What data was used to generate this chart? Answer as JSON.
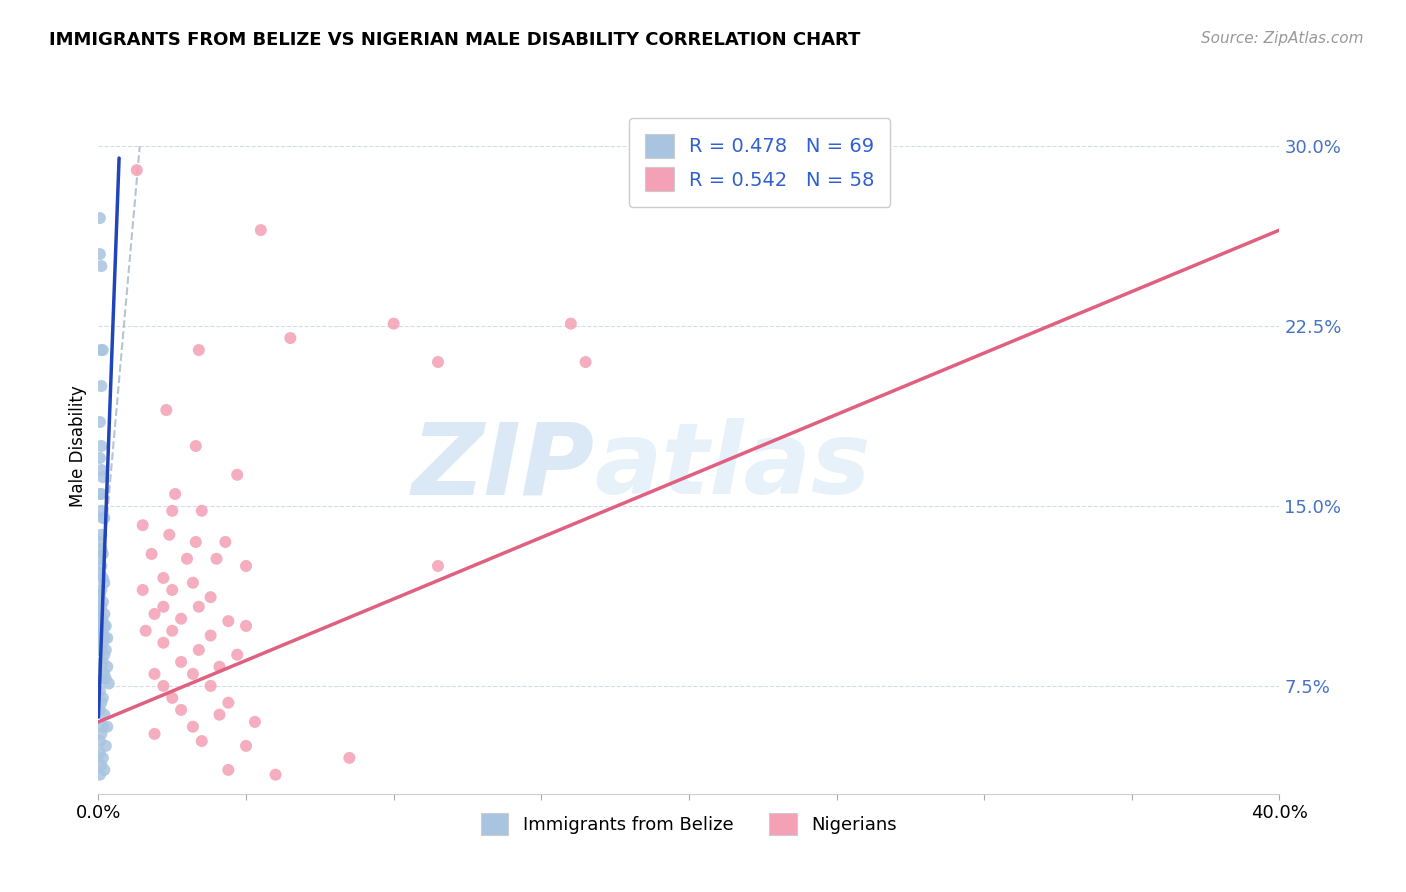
{
  "title": "IMMIGRANTS FROM BELIZE VS NIGERIAN MALE DISABILITY CORRELATION CHART",
  "source": "Source: ZipAtlas.com",
  "ylabel": "Male Disability",
  "ytick_labels": [
    "7.5%",
    "15.0%",
    "22.5%",
    "30.0%"
  ],
  "ytick_values": [
    0.075,
    0.15,
    0.225,
    0.3
  ],
  "xlim": [
    0.0,
    0.4
  ],
  "ylim": [
    0.03,
    0.32
  ],
  "legend_blue_label": "R = 0.478   N = 69",
  "legend_pink_label": "R = 0.542   N = 58",
  "legend_belize_label": "Immigrants from Belize",
  "legend_nigerian_label": "Nigerians",
  "watermark_zip": "ZIP",
  "watermark_atlas": "atlas",
  "blue_color": "#a8c4e0",
  "pink_color": "#f4a0b5",
  "blue_line_color": "#2244bb",
  "pink_line_color": "#e06080",
  "dashed_line_color": "#b8c4d0",
  "blue_scatter": [
    [
      0.0005,
      0.255
    ],
    [
      0.0005,
      0.27
    ],
    [
      0.001,
      0.25
    ],
    [
      0.0008,
      0.215
    ],
    [
      0.0015,
      0.215
    ],
    [
      0.001,
      0.2
    ],
    [
      0.0005,
      0.185
    ],
    [
      0.001,
      0.175
    ],
    [
      0.0005,
      0.17
    ],
    [
      0.001,
      0.165
    ],
    [
      0.0015,
      0.162
    ],
    [
      0.0005,
      0.155
    ],
    [
      0.001,
      0.155
    ],
    [
      0.001,
      0.148
    ],
    [
      0.0015,
      0.145
    ],
    [
      0.002,
      0.145
    ],
    [
      0.001,
      0.138
    ],
    [
      0.0005,
      0.135
    ],
    [
      0.001,
      0.132
    ],
    [
      0.0015,
      0.13
    ],
    [
      0.0005,
      0.128
    ],
    [
      0.001,
      0.125
    ],
    [
      0.0005,
      0.122
    ],
    [
      0.0015,
      0.12
    ],
    [
      0.002,
      0.118
    ],
    [
      0.001,
      0.115
    ],
    [
      0.0005,
      0.113
    ],
    [
      0.0015,
      0.11
    ],
    [
      0.001,
      0.108
    ],
    [
      0.0005,
      0.105
    ],
    [
      0.002,
      0.105
    ],
    [
      0.001,
      0.103
    ],
    [
      0.0015,
      0.102
    ],
    [
      0.0005,
      0.1
    ],
    [
      0.001,
      0.1
    ],
    [
      0.002,
      0.1
    ],
    [
      0.0025,
      0.1
    ],
    [
      0.0015,
      0.098
    ],
    [
      0.0005,
      0.096
    ],
    [
      0.001,
      0.095
    ],
    [
      0.002,
      0.095
    ],
    [
      0.003,
      0.095
    ],
    [
      0.0015,
      0.093
    ],
    [
      0.0005,
      0.09
    ],
    [
      0.001,
      0.09
    ],
    [
      0.0025,
      0.09
    ],
    [
      0.002,
      0.088
    ],
    [
      0.0015,
      0.085
    ],
    [
      0.001,
      0.083
    ],
    [
      0.003,
      0.083
    ],
    [
      0.002,
      0.08
    ],
    [
      0.0015,
      0.078
    ],
    [
      0.0025,
      0.078
    ],
    [
      0.0035,
      0.076
    ],
    [
      0.0005,
      0.073
    ],
    [
      0.0015,
      0.07
    ],
    [
      0.001,
      0.068
    ],
    [
      0.0005,
      0.065
    ],
    [
      0.002,
      0.063
    ],
    [
      0.0015,
      0.058
    ],
    [
      0.003,
      0.058
    ],
    [
      0.001,
      0.055
    ],
    [
      0.0005,
      0.052
    ],
    [
      0.0025,
      0.05
    ],
    [
      0.0005,
      0.047
    ],
    [
      0.0015,
      0.045
    ],
    [
      0.001,
      0.042
    ],
    [
      0.002,
      0.04
    ],
    [
      0.0005,
      0.038
    ]
  ],
  "pink_scatter": [
    [
      0.013,
      0.29
    ],
    [
      0.055,
      0.265
    ],
    [
      0.034,
      0.215
    ],
    [
      0.065,
      0.22
    ],
    [
      0.1,
      0.226
    ],
    [
      0.16,
      0.226
    ],
    [
      0.115,
      0.21
    ],
    [
      0.023,
      0.19
    ],
    [
      0.033,
      0.175
    ],
    [
      0.047,
      0.163
    ],
    [
      0.026,
      0.155
    ],
    [
      0.025,
      0.148
    ],
    [
      0.035,
      0.148
    ],
    [
      0.015,
      0.142
    ],
    [
      0.024,
      0.138
    ],
    [
      0.033,
      0.135
    ],
    [
      0.043,
      0.135
    ],
    [
      0.018,
      0.13
    ],
    [
      0.03,
      0.128
    ],
    [
      0.04,
      0.128
    ],
    [
      0.05,
      0.125
    ],
    [
      0.022,
      0.12
    ],
    [
      0.032,
      0.118
    ],
    [
      0.015,
      0.115
    ],
    [
      0.025,
      0.115
    ],
    [
      0.038,
      0.112
    ],
    [
      0.022,
      0.108
    ],
    [
      0.034,
      0.108
    ],
    [
      0.019,
      0.105
    ],
    [
      0.028,
      0.103
    ],
    [
      0.044,
      0.102
    ],
    [
      0.05,
      0.1
    ],
    [
      0.016,
      0.098
    ],
    [
      0.025,
      0.098
    ],
    [
      0.038,
      0.096
    ],
    [
      0.115,
      0.125
    ],
    [
      0.165,
      0.21
    ],
    [
      0.022,
      0.093
    ],
    [
      0.034,
      0.09
    ],
    [
      0.047,
      0.088
    ],
    [
      0.028,
      0.085
    ],
    [
      0.041,
      0.083
    ],
    [
      0.019,
      0.08
    ],
    [
      0.032,
      0.08
    ],
    [
      0.022,
      0.075
    ],
    [
      0.038,
      0.075
    ],
    [
      0.025,
      0.07
    ],
    [
      0.044,
      0.068
    ],
    [
      0.028,
      0.065
    ],
    [
      0.041,
      0.063
    ],
    [
      0.053,
      0.06
    ],
    [
      0.032,
      0.058
    ],
    [
      0.019,
      0.055
    ],
    [
      0.035,
      0.052
    ],
    [
      0.05,
      0.05
    ],
    [
      0.085,
      0.045
    ],
    [
      0.044,
      0.04
    ],
    [
      0.06,
      0.038
    ]
  ],
  "blue_trend": {
    "x_start": 0.0,
    "y_start": 0.062,
    "x_end": 0.007,
    "y_end": 0.295
  },
  "pink_trend": {
    "x_start": 0.0,
    "y_start": 0.06,
    "x_end": 0.4,
    "y_end": 0.265
  },
  "dashed_trend": {
    "x_start": 0.0,
    "y_start": 0.105,
    "x_end": 0.014,
    "y_end": 0.3
  }
}
